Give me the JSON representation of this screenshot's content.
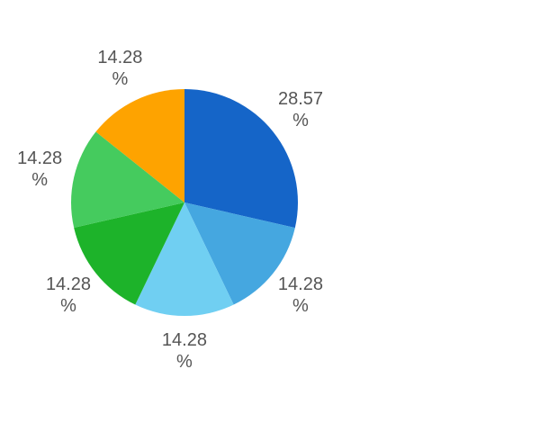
{
  "chart_data": {
    "type": "pie",
    "values": [
      28.57,
      14.28,
      14.28,
      14.28,
      14.28,
      14.28
    ],
    "value_labels": [
      "28.57 %",
      "14.28 %",
      "14.28 %",
      "14.28 %",
      "14.28 %",
      "14.28 %"
    ],
    "colors": [
      "#1565c8",
      "#45a7e0",
      "#70cff2",
      "#1db32a",
      "#45cb5e",
      "#fea300"
    ]
  }
}
